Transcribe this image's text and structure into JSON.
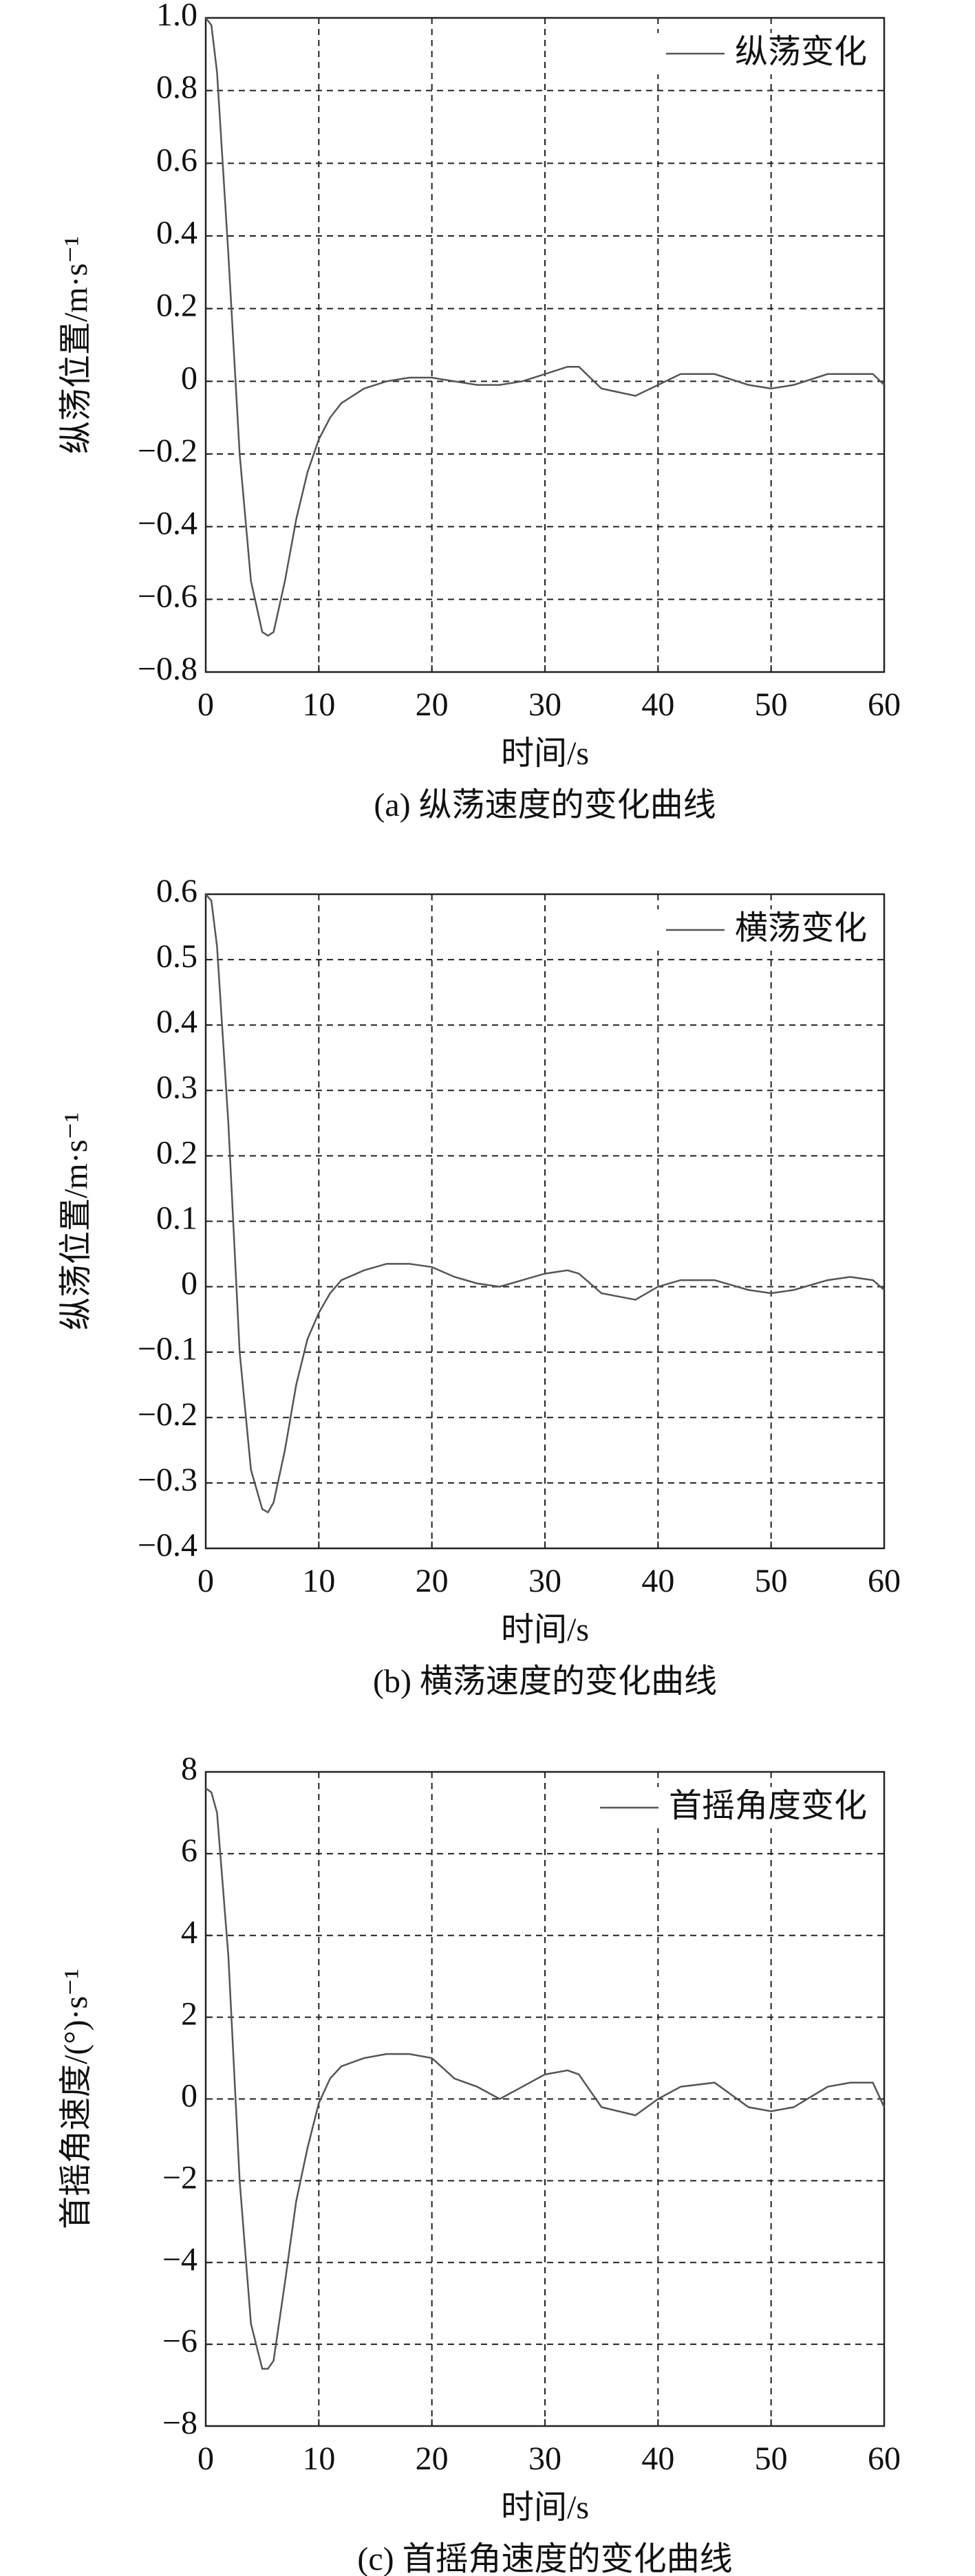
{
  "chart_data": [
    {
      "type": "line",
      "title": "(a) 纵荡速度的变化曲线",
      "xlabel": "时间/s",
      "ylabel": "纵荡位置/m·s⁻¹",
      "xlim": [
        0,
        60
      ],
      "xticks": [
        0,
        10,
        20,
        30,
        40,
        50,
        60
      ],
      "ylim": [
        -0.8,
        1.0
      ],
      "yticks": [
        {
          "value": 1.0,
          "label": "1.0"
        },
        0.8,
        0.6,
        0.4,
        0.2,
        0,
        {
          "value": -0.2,
          "label": "−0.2"
        },
        {
          "value": -0.4,
          "label": "−0.4"
        },
        {
          "value": -0.6,
          "label": "−0.6"
        },
        {
          "value": -0.8,
          "label": "−0.8"
        }
      ],
      "grid": true,
      "legend": "upper right",
      "x": [
        0,
        0.5,
        1,
        2,
        3,
        4,
        5,
        5.5,
        6,
        7,
        8,
        9,
        10,
        11,
        12,
        14,
        16,
        18,
        20,
        22,
        24,
        26,
        28,
        30,
        32,
        33,
        35,
        38,
        40,
        42,
        45,
        48,
        50,
        52,
        55,
        57,
        59,
        60
      ],
      "series": [
        {
          "name": "纵荡变化",
          "color": "#555555",
          "values": [
            1.0,
            0.98,
            0.85,
            0.35,
            -0.2,
            -0.55,
            -0.69,
            -0.7,
            -0.69,
            -0.55,
            -0.38,
            -0.25,
            -0.16,
            -0.1,
            -0.06,
            -0.02,
            0.0,
            0.01,
            0.01,
            0.0,
            -0.01,
            -0.01,
            0.0,
            0.02,
            0.04,
            0.04,
            -0.02,
            -0.04,
            -0.01,
            0.02,
            0.02,
            -0.01,
            -0.02,
            -0.01,
            0.02,
            0.02,
            0.02,
            -0.01
          ]
        }
      ]
    },
    {
      "type": "line",
      "title": "(b) 横荡速度的变化曲线",
      "xlabel": "时间/s",
      "ylabel": "纵荡位置/m·s⁻¹",
      "xlim": [
        0,
        60
      ],
      "xticks": [
        0,
        10,
        20,
        30,
        40,
        50,
        60
      ],
      "ylim": [
        -0.4,
        0.6
      ],
      "yticks": [
        0.6,
        0.5,
        0.4,
        0.3,
        0.2,
        0.1,
        0,
        {
          "value": -0.1,
          "label": "−0.1"
        },
        {
          "value": -0.2,
          "label": "−0.2"
        },
        {
          "value": -0.3,
          "label": "−0.3"
        },
        {
          "value": -0.4,
          "label": "−0.4"
        }
      ],
      "grid": true,
      "legend": "upper right",
      "x": [
        0,
        0.5,
        1,
        2,
        3,
        4,
        5,
        5.5,
        6,
        7,
        8,
        9,
        10,
        11,
        12,
        14,
        16,
        18,
        20,
        22,
        24,
        26,
        28,
        30,
        32,
        33,
        35,
        38,
        40,
        42,
        45,
        48,
        50,
        52,
        55,
        57,
        59,
        60
      ],
      "series": [
        {
          "name": "横荡变化",
          "color": "#555555",
          "values": [
            0.6,
            0.59,
            0.52,
            0.25,
            -0.1,
            -0.28,
            -0.34,
            -0.345,
            -0.33,
            -0.25,
            -0.15,
            -0.08,
            -0.04,
            -0.01,
            0.01,
            0.025,
            0.035,
            0.035,
            0.03,
            0.015,
            0.005,
            0.0,
            0.01,
            0.02,
            0.025,
            0.02,
            -0.01,
            -0.02,
            0.0,
            0.01,
            0.01,
            -0.005,
            -0.01,
            -0.005,
            0.01,
            0.015,
            0.01,
            -0.005
          ]
        }
      ]
    },
    {
      "type": "line",
      "title": "(c) 首摇角速度的变化曲线",
      "xlabel": "时间/s",
      "ylabel": "首摇角速度/(°)·s⁻¹",
      "xlim": [
        0,
        60
      ],
      "xticks": [
        0,
        10,
        20,
        30,
        40,
        50,
        60
      ],
      "ylim": [
        -8,
        8
      ],
      "yticks": [
        8,
        6,
        4,
        2,
        0,
        {
          "value": -2,
          "label": "−2"
        },
        {
          "value": -4,
          "label": "−4"
        },
        {
          "value": -6,
          "label": "−6"
        },
        {
          "value": -8,
          "label": "−8"
        }
      ],
      "grid": true,
      "legend": "upper right",
      "x": [
        0,
        0.5,
        1,
        2,
        3,
        4,
        5,
        5.5,
        6,
        7,
        8,
        9,
        10,
        11,
        12,
        14,
        16,
        18,
        20,
        22,
        24,
        26,
        28,
        30,
        32,
        33,
        35,
        38,
        40,
        42,
        45,
        48,
        50,
        52,
        55,
        57,
        59,
        60
      ],
      "series": [
        {
          "name": "首摇角度变化",
          "color": "#555555",
          "values": [
            7.6,
            7.5,
            7.0,
            3.5,
            -2,
            -5.5,
            -6.6,
            -6.6,
            -6.4,
            -4.5,
            -2.5,
            -1.2,
            -0.1,
            0.5,
            0.8,
            1.0,
            1.1,
            1.1,
            1.0,
            0.5,
            0.3,
            0.0,
            0.3,
            0.6,
            0.7,
            0.6,
            -0.2,
            -0.4,
            0.0,
            0.3,
            0.4,
            -0.2,
            -0.3,
            -0.2,
            0.3,
            0.4,
            0.4,
            -0.2
          ]
        }
      ]
    }
  ]
}
